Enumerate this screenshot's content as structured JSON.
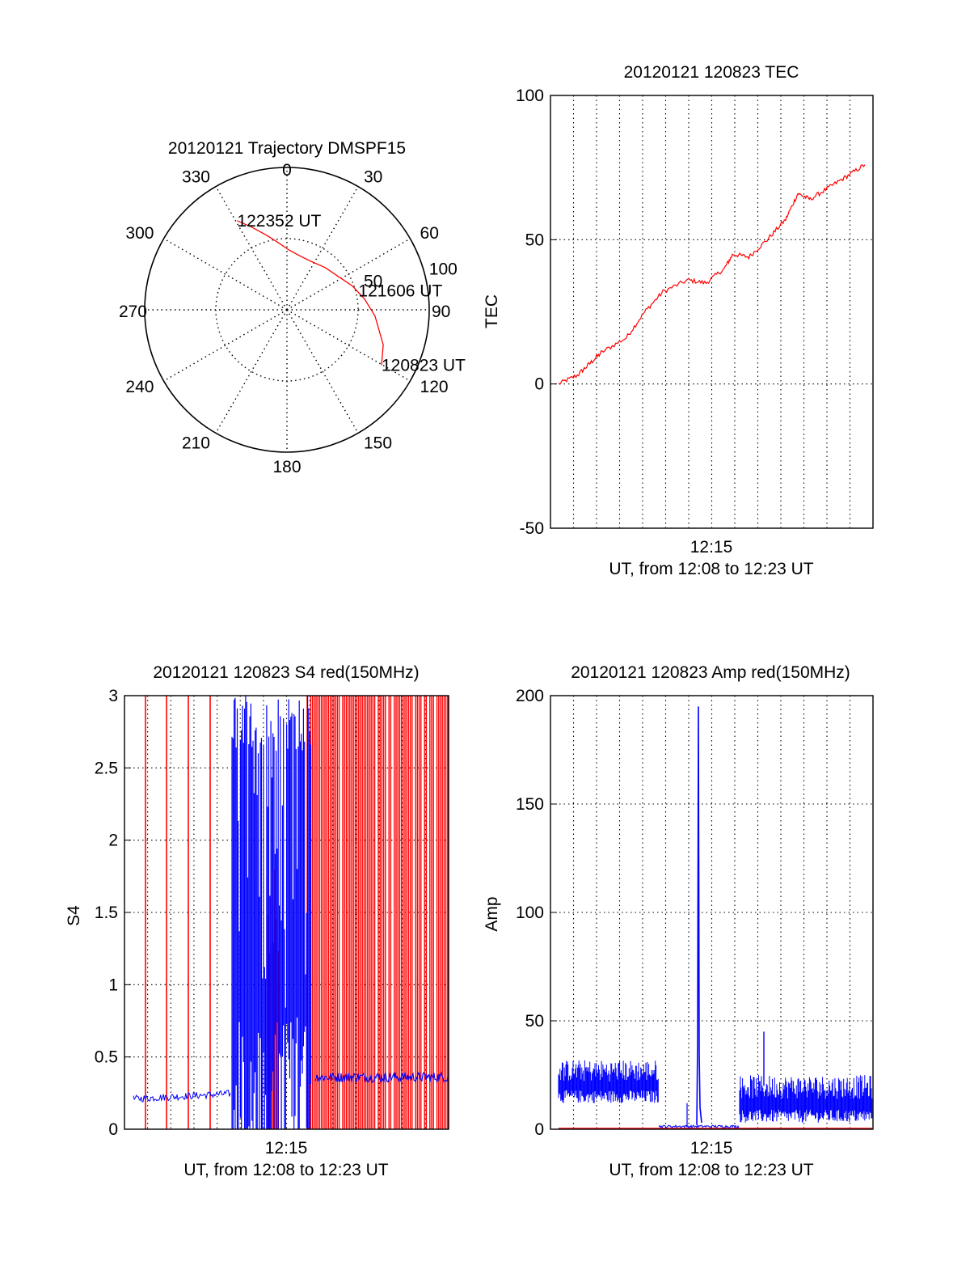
{
  "colors": {
    "red_series": "#ff0000",
    "blue_series": "#0000ff",
    "axes": "#000000",
    "grid": "#000000"
  },
  "chart_data": [
    {
      "id": "polar",
      "type": "scatter",
      "title": "20120121 Trajectory DMSPF15",
      "azimuth_labels": [
        "0",
        "30",
        "60",
        "90",
        "120",
        "150",
        "180",
        "210",
        "240",
        "270",
        "300",
        "330"
      ],
      "radius_labels": [
        "50",
        "100"
      ],
      "rlim": [
        0,
        100
      ],
      "grid": true,
      "series": [
        {
          "color": "#ff0000",
          "points": [
            [
              330.8,
              71.7
            ],
            [
              337,
              63
            ],
            [
              345,
              54
            ],
            [
              352,
              48
            ],
            [
              2,
              42
            ],
            [
              13,
              39
            ],
            [
              27,
              38
            ],
            [
              42,
              40
            ],
            [
              57,
              43
            ],
            [
              70,
              49
            ],
            [
              82,
              55
            ],
            [
              94,
              62
            ],
            [
              110,
              72
            ],
            [
              120.3,
              77.0
            ]
          ]
        }
      ],
      "annotations": [
        {
          "text": "122352 UT",
          "az": 330.8,
          "r": 71.7
        },
        {
          "text": "121606 UT",
          "az": 75,
          "r": 52
        },
        {
          "text": "120823 UT",
          "az": 120.3,
          "r": 77.0
        }
      ]
    },
    {
      "id": "tec",
      "type": "line",
      "title": "20120121 120823 TEC",
      "xlabel": "UT, from 12:08 to 12:23 UT",
      "ylabel": "TEC",
      "ylim": [
        -50,
        100
      ],
      "yticks": [
        "100",
        "50",
        "0",
        "-50"
      ],
      "xticks": [
        "12:15"
      ],
      "xlim_minutes": [
        12.14,
        12.39
      ],
      "grid": true,
      "series": [
        {
          "color": "#ff0000",
          "x": [
            12.1397,
            12.155,
            12.165,
            12.175,
            12.195,
            12.21,
            12.225,
            12.245,
            12.26,
            12.275,
            12.282,
            12.295,
            12.31,
            12.325,
            12.335,
            12.345,
            12.36,
            12.375,
            12.3897
          ],
          "y": [
            0,
            3,
            7,
            11,
            16,
            25,
            32,
            36,
            35,
            40,
            45,
            44,
            50,
            57,
            66,
            64,
            68,
            72,
            76
          ]
        }
      ]
    },
    {
      "id": "s4",
      "type": "line",
      "title": "20120121 120823 S4 red(150MHz)",
      "xlabel": "UT, from 12:08 to 12:23 UT",
      "ylabel": "S4",
      "ylim": [
        0,
        3
      ],
      "yticks": [
        "3",
        "2.5",
        "2",
        "1.5",
        "1",
        "0.5",
        "0"
      ],
      "xticks": [
        "12:15"
      ],
      "grid": true,
      "series": [
        {
          "color": "#0000ff",
          "x_range": [
            12.1397,
            12.2197
          ],
          "level": 0.21
        },
        {
          "color": "#0000ff",
          "x_range": [
            12.2197,
            12.2897
          ],
          "level": "0 to 3 (saturated)"
        },
        {
          "color": "#0000ff",
          "x_range": [
            12.2897,
            12.3897
          ],
          "level": 0.36
        },
        {
          "color": "#ff0000",
          "x_range": [
            12.2897,
            12.3897
          ],
          "level": "0 to 3 (saturated)"
        }
      ]
    },
    {
      "id": "amp",
      "type": "line",
      "title": "20120121 120823 Amp red(150MHz)",
      "xlabel": "UT, from 12:08 to 12:23 UT",
      "ylabel": "Amp",
      "ylim": [
        0,
        200
      ],
      "yticks": [
        "200",
        "150",
        "100",
        "50",
        "0"
      ],
      "xticks": [
        "12:15"
      ],
      "grid": true,
      "series": [
        {
          "color": "#0000ff",
          "x_range": [
            12.1397,
            12.2197
          ],
          "band": [
            12,
            30
          ]
        },
        {
          "color": "#0000ff",
          "x_range": [
            12.2197,
            12.2617
          ],
          "band": [
            0,
            2
          ]
        },
        {
          "color": "#0000ff",
          "x": 12.2622,
          "peak": 195
        },
        {
          "color": "#0000ff",
          "x_range": [
            12.2847,
            12.3897
          ],
          "band": [
            6,
            25
          ]
        },
        {
          "color": "#0000ff",
          "x": 12.3002,
          "peak": 45
        },
        {
          "color": "#ff0000",
          "x_range": [
            12.1397,
            12.3897
          ],
          "level": 0
        }
      ]
    }
  ]
}
